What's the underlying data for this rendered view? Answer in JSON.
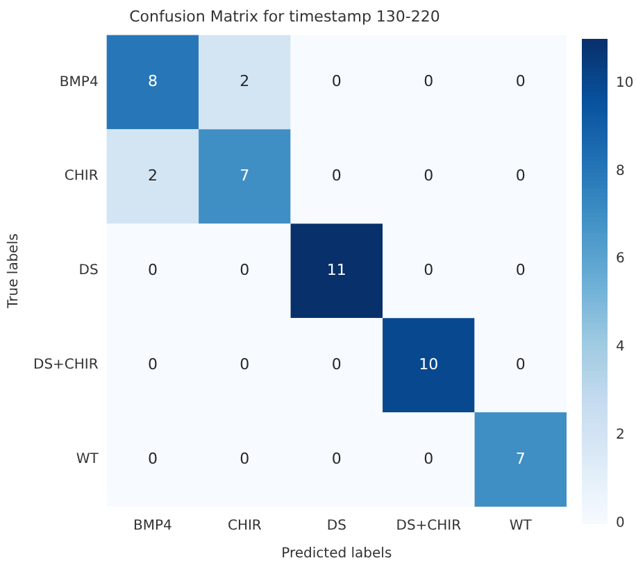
{
  "chart_data": {
    "type": "heatmap",
    "title": "Confusion Matrix for timestamp 130-220",
    "xlabel": "Predicted labels",
    "ylabel": "True labels",
    "categories": [
      "BMP4",
      "CHIR",
      "DS",
      "DS+CHIR",
      "WT"
    ],
    "y_categories": [
      "BMP4",
      "CHIR",
      "DS",
      "DS+CHIR",
      "WT"
    ],
    "cells": [
      [
        8,
        2,
        0,
        0,
        0
      ],
      [
        2,
        7,
        0,
        0,
        0
      ],
      [
        0,
        0,
        11,
        0,
        0
      ],
      [
        0,
        0,
        0,
        10,
        0
      ],
      [
        0,
        0,
        0,
        0,
        7
      ]
    ],
    "data_labels": true,
    "clim": [
      0,
      11
    ],
    "cticks": [
      0,
      2,
      4,
      6,
      8,
      10
    ]
  }
}
